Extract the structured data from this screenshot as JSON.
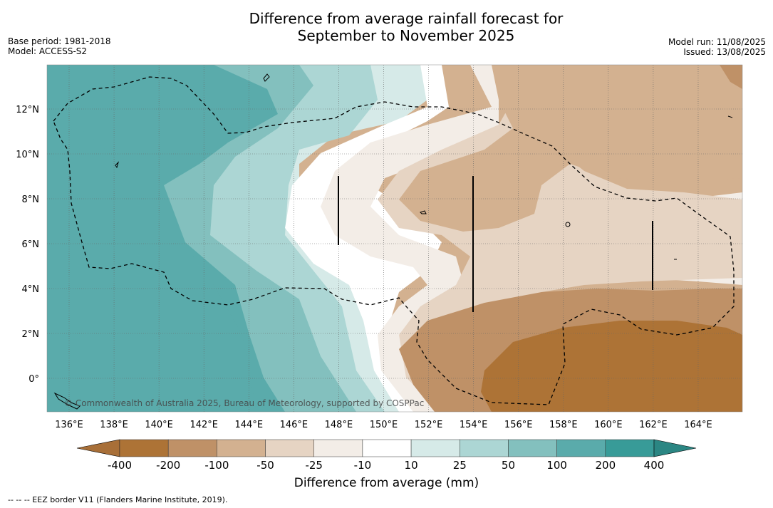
{
  "title_line1": "Difference from average rainfall forecast for",
  "title_line2": "September to November 2025",
  "base_period": "Base period: 1981-2018",
  "model": "Model: ACCESS-S2",
  "model_run": "Model run: 11/08/2025",
  "issued": "Issued: 13/08/2025",
  "copyright": "© Commonwealth of Australia 2025, Bureau of Meteorology, supported by COSPPac",
  "lon_labels": [
    "136°E",
    "138°E",
    "140°E",
    "142°E",
    "144°E",
    "146°E",
    "148°E",
    "150°E",
    "152°E",
    "154°E",
    "156°E",
    "158°E",
    "160°E",
    "162°E",
    "164°E"
  ],
  "lat_labels": [
    "12°N",
    "10°N",
    "8°N",
    "6°N",
    "4°N",
    "2°N",
    "0°"
  ],
  "colorbar": {
    "title": "Difference from average (mm)",
    "ticks": [
      "-400",
      "-200",
      "-100",
      "-50",
      "-25",
      "-10",
      "10",
      "25",
      "50",
      "100",
      "200",
      "400"
    ],
    "colors": [
      "#a86f38",
      "#ad7336",
      "#bf9167",
      "#d3b190",
      "#e6d4c3",
      "#f3ede7",
      "#ffffff",
      "#d6eae8",
      "#acd6d4",
      "#83c0be",
      "#5aabab",
      "#389b98",
      "#2b8683"
    ]
  },
  "footnote": "--  --  -- EEZ border V11 (Flanders Marine Institute, 2019)."
}
